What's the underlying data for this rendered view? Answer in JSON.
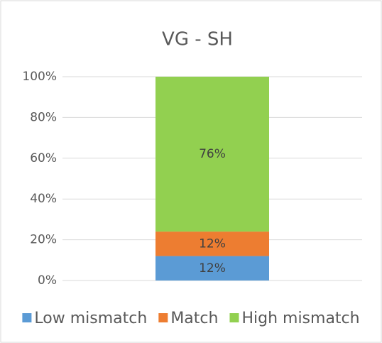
{
  "chart_data": {
    "type": "bar",
    "stacked": true,
    "title": "VG - SH",
    "categories": [
      null
    ],
    "series": [
      {
        "name": "Low mismatch",
        "color": "#5b9bd5",
        "values": [
          12
        ],
        "value_labels": [
          "12%"
        ]
      },
      {
        "name": "Match",
        "color": "#ed7d31",
        "values": [
          12
        ],
        "value_labels": [
          "12%"
        ]
      },
      {
        "name": "High mismatch",
        "color": "#92d050",
        "values": [
          76
        ],
        "value_labels": [
          "76%"
        ]
      }
    ],
    "ylim": [
      0,
      100
    ],
    "yticks": [
      {
        "value": 0,
        "label": "0%"
      },
      {
        "value": 20,
        "label": "20%"
      },
      {
        "value": 40,
        "label": "40%"
      },
      {
        "value": 60,
        "label": "60%"
      },
      {
        "value": 80,
        "label": "80%"
      },
      {
        "value": 100,
        "label": "100%"
      }
    ],
    "grid": true,
    "legend": "bottom"
  }
}
